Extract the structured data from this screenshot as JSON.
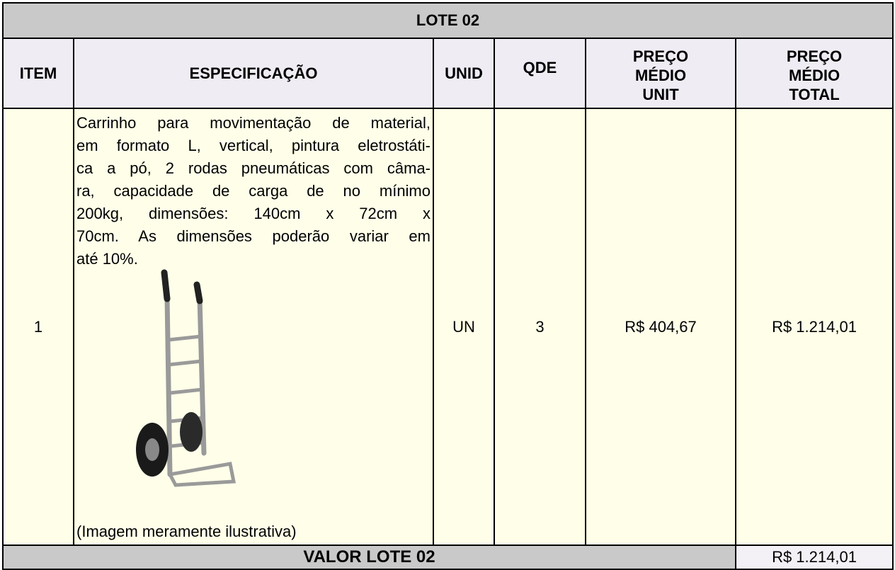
{
  "header": {
    "title": "LOTE 02"
  },
  "table": {
    "columns": [
      [
        "ITEM"
      ],
      [
        "ESPECIFICAÇÃO"
      ],
      [
        "UNID"
      ],
      [
        "QDE"
      ],
      [
        "PREÇO",
        "MÉDIO",
        "UNIT"
      ],
      [
        "PREÇO",
        "MÉDIO",
        "TOTAL"
      ]
    ],
    "rows": [
      {
        "item": "1",
        "specification": [
          "Carrinho para movimentação de material,",
          "em formato L, vertical, pintura eletrostáti-",
          "ca a pó, 2 rodas pneumáticas com câma-",
          "ra, capacidade de carga de no mínimo",
          "200kg, dimensões: 140cm x 72cm x",
          "70cm. As dimensões poderão variar em",
          "até 10%."
        ],
        "image_caption": "(Imagem meramente ilustrativa)",
        "unit": "UN",
        "quantity": "3",
        "unit_price": "R$ 404,67",
        "total_price": "R$ 1.214,01"
      }
    ]
  },
  "footer": {
    "label": "VALOR LOTE 02",
    "value": "R$ 1.214,01"
  }
}
